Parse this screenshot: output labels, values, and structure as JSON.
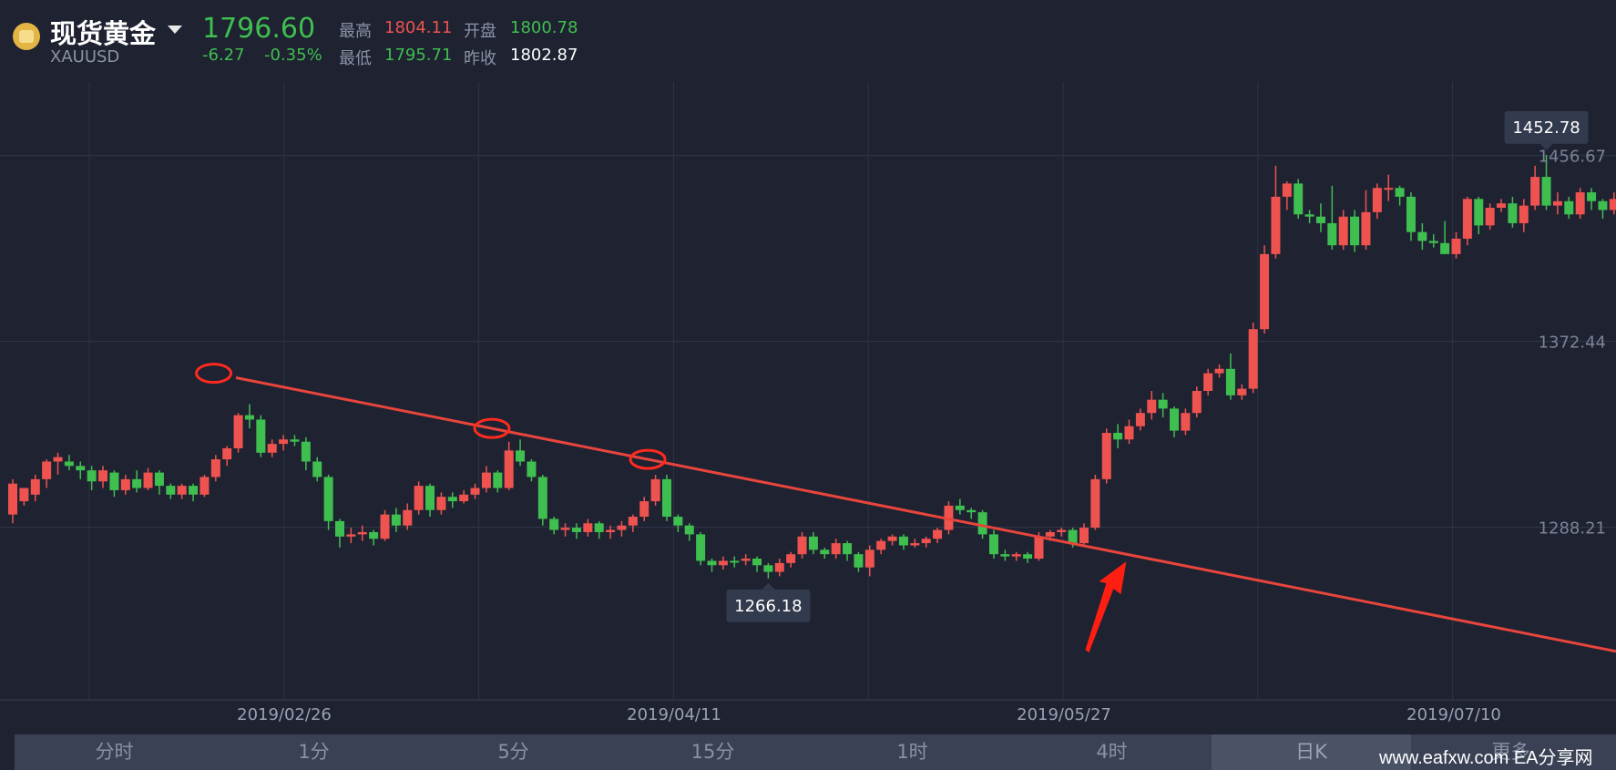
{
  "header": {
    "symbol": "现货黄金",
    "code": "XAUUSD",
    "price": "1796.60",
    "change": "-6.27",
    "change_pct": "-0.35%",
    "high_label": "最高",
    "high": "1804.11",
    "open_label": "开盘",
    "open": "1800.78",
    "low_label": "最低",
    "low": "1795.71",
    "prev_close_label": "昨收",
    "prev_close": "1802.87",
    "colors": {
      "up": "#ef5350",
      "down": "#3fbf50",
      "neutral": "#ffffff"
    }
  },
  "chart_data": {
    "type": "candlestick",
    "x_ticks": [
      "2019/02/26",
      "2019/04/11",
      "2019/05/27",
      "2019/07/10"
    ],
    "y_ticks": [
      1456.67,
      1372.44,
      1288.21
    ],
    "ylim": [
      1210,
      1490
    ],
    "grid": true,
    "callouts": {
      "high": "1452.78",
      "low": "1266.18"
    },
    "candles": [
      [
        1294,
        1308,
        1290,
        1310,
        "up"
      ],
      [
        1300,
        1306,
        1298,
        1306,
        "up"
      ],
      [
        1303,
        1310,
        1300,
        1312,
        "up"
      ],
      [
        1310,
        1318,
        1306,
        1319,
        "up"
      ],
      [
        1318,
        1320,
        1312,
        1322,
        "up"
      ],
      [
        1318,
        1316,
        1314,
        1321,
        "down"
      ],
      [
        1316,
        1314,
        1310,
        1318,
        "down"
      ],
      [
        1314,
        1309,
        1305,
        1316,
        "down"
      ],
      [
        1309,
        1314,
        1306,
        1316,
        "up"
      ],
      [
        1313,
        1305,
        1302,
        1314,
        "down"
      ],
      [
        1305,
        1310,
        1303,
        1312,
        "up"
      ],
      [
        1310,
        1306,
        1304,
        1314,
        "down"
      ],
      [
        1306,
        1313,
        1305,
        1315,
        "up"
      ],
      [
        1313,
        1307,
        1303,
        1314,
        "down"
      ],
      [
        1307,
        1303,
        1301,
        1308,
        "down"
      ],
      [
        1303,
        1307,
        1301,
        1308,
        "up"
      ],
      [
        1307,
        1303,
        1300,
        1308,
        "down"
      ],
      [
        1303,
        1311,
        1302,
        1312,
        "up"
      ],
      [
        1311,
        1319,
        1309,
        1321,
        "up"
      ],
      [
        1319,
        1324,
        1316,
        1325,
        "up"
      ],
      [
        1324,
        1339,
        1322,
        1340,
        "up"
      ],
      [
        1339,
        1337,
        1333,
        1344,
        "down"
      ],
      [
        1337,
        1322,
        1320,
        1339,
        "down"
      ],
      [
        1322,
        1326,
        1320,
        1328,
        "up"
      ],
      [
        1326,
        1328,
        1323,
        1330,
        "up"
      ],
      [
        1328,
        1327,
        1325,
        1330,
        "down"
      ],
      [
        1327,
        1318,
        1314,
        1329,
        "down"
      ],
      [
        1318,
        1311,
        1309,
        1320,
        "down"
      ],
      [
        1311,
        1291,
        1287,
        1312,
        "down"
      ],
      [
        1291,
        1284,
        1279,
        1292,
        "down"
      ],
      [
        1284,
        1285,
        1281,
        1288,
        "up"
      ],
      [
        1285,
        1286,
        1282,
        1289,
        "up"
      ],
      [
        1286,
        1283,
        1280,
        1287,
        "down"
      ],
      [
        1283,
        1294,
        1282,
        1296,
        "up"
      ],
      [
        1294,
        1289,
        1286,
        1297,
        "down"
      ],
      [
        1289,
        1296,
        1287,
        1299,
        "up"
      ],
      [
        1296,
        1307,
        1294,
        1309,
        "up"
      ],
      [
        1307,
        1296,
        1293,
        1308,
        "down"
      ],
      [
        1296,
        1302,
        1294,
        1304,
        "up"
      ],
      [
        1302,
        1300,
        1297,
        1304,
        "down"
      ],
      [
        1300,
        1303,
        1299,
        1305,
        "up"
      ],
      [
        1303,
        1306,
        1301,
        1308,
        "up"
      ],
      [
        1306,
        1313,
        1304,
        1316,
        "up"
      ],
      [
        1313,
        1306,
        1304,
        1314,
        "down"
      ],
      [
        1306,
        1323,
        1305,
        1327,
        "up"
      ],
      [
        1323,
        1318,
        1316,
        1328,
        "down"
      ],
      [
        1318,
        1311,
        1309,
        1319,
        "down"
      ],
      [
        1311,
        1292,
        1289,
        1312,
        "down"
      ],
      [
        1292,
        1287,
        1285,
        1293,
        "down"
      ],
      [
        1287,
        1288,
        1284,
        1290,
        "up"
      ],
      [
        1288,
        1286,
        1283,
        1290,
        "down"
      ],
      [
        1286,
        1290,
        1284,
        1292,
        "up"
      ],
      [
        1290,
        1286,
        1283,
        1291,
        "down"
      ],
      [
        1286,
        1287,
        1283,
        1289,
        "up"
      ],
      [
        1287,
        1289,
        1284,
        1291,
        "up"
      ],
      [
        1289,
        1293,
        1286,
        1294,
        "up"
      ],
      [
        1293,
        1300,
        1291,
        1302,
        "up"
      ],
      [
        1300,
        1310,
        1298,
        1312,
        "up"
      ],
      [
        1310,
        1293,
        1291,
        1312,
        "down"
      ],
      [
        1293,
        1289,
        1286,
        1294,
        "down"
      ],
      [
        1289,
        1285,
        1282,
        1290,
        "down"
      ],
      [
        1285,
        1273,
        1271,
        1286,
        "down"
      ],
      [
        1273,
        1271,
        1268,
        1274,
        "down"
      ],
      [
        1271,
        1273,
        1269,
        1275,
        "up"
      ],
      [
        1273,
        1273,
        1270,
        1275,
        "down"
      ],
      [
        1273,
        1274,
        1271,
        1276,
        "up"
      ],
      [
        1274,
        1271,
        1268,
        1275,
        "down"
      ],
      [
        1271,
        1268,
        1265,
        1272,
        "down"
      ],
      [
        1268,
        1272,
        1266,
        1274,
        "up"
      ],
      [
        1272,
        1276,
        1270,
        1277,
        "up"
      ],
      [
        1276,
        1284,
        1274,
        1286,
        "up"
      ],
      [
        1284,
        1278,
        1276,
        1286,
        "down"
      ],
      [
        1278,
        1276,
        1274,
        1279,
        "down"
      ],
      [
        1276,
        1281,
        1274,
        1283,
        "up"
      ],
      [
        1281,
        1276,
        1273,
        1282,
        "down"
      ],
      [
        1276,
        1270,
        1268,
        1277,
        "down"
      ],
      [
        1270,
        1278,
        1266,
        1280,
        "up"
      ],
      [
        1278,
        1282,
        1276,
        1283,
        "up"
      ],
      [
        1282,
        1284,
        1280,
        1285,
        "up"
      ],
      [
        1284,
        1280,
        1278,
        1285,
        "down"
      ],
      [
        1280,
        1281,
        1279,
        1283,
        "up"
      ],
      [
        1281,
        1283,
        1279,
        1284,
        "up"
      ],
      [
        1283,
        1287,
        1281,
        1288,
        "up"
      ],
      [
        1287,
        1298,
        1285,
        1300,
        "up"
      ],
      [
        1298,
        1296,
        1294,
        1301,
        "down"
      ],
      [
        1296,
        1295,
        1292,
        1297,
        "down"
      ],
      [
        1295,
        1285,
        1283,
        1296,
        "down"
      ],
      [
        1285,
        1276,
        1274,
        1287,
        "down"
      ],
      [
        1276,
        1275,
        1273,
        1278,
        "down"
      ],
      [
        1275,
        1276,
        1273,
        1277,
        "up"
      ],
      [
        1276,
        1274,
        1272,
        1277,
        "down"
      ],
      [
        1274,
        1284,
        1273,
        1286,
        "up"
      ],
      [
        1284,
        1286,
        1282,
        1287,
        "up"
      ],
      [
        1286,
        1287,
        1284,
        1288,
        "up"
      ],
      [
        1287,
        1281,
        1279,
        1288,
        "down"
      ],
      [
        1281,
        1288,
        1280,
        1290,
        "up"
      ],
      [
        1288,
        1310,
        1287,
        1312,
        "up"
      ],
      [
        1310,
        1331,
        1308,
        1333,
        "up"
      ],
      [
        1331,
        1328,
        1324,
        1335,
        "down"
      ],
      [
        1328,
        1334,
        1326,
        1337,
        "up"
      ],
      [
        1334,
        1340,
        1332,
        1342,
        "up"
      ],
      [
        1340,
        1346,
        1337,
        1350,
        "up"
      ],
      [
        1346,
        1342,
        1338,
        1349,
        "down"
      ],
      [
        1342,
        1332,
        1329,
        1343,
        "down"
      ],
      [
        1332,
        1340,
        1330,
        1342,
        "up"
      ],
      [
        1340,
        1350,
        1338,
        1352,
        "up"
      ],
      [
        1350,
        1358,
        1348,
        1360,
        "up"
      ],
      [
        1358,
        1360,
        1356,
        1362,
        "up"
      ],
      [
        1360,
        1348,
        1346,
        1367,
        "down"
      ],
      [
        1348,
        1351,
        1346,
        1353,
        "up"
      ],
      [
        1351,
        1378,
        1349,
        1381,
        "up"
      ],
      [
        1378,
        1412,
        1376,
        1416,
        "up"
      ],
      [
        1412,
        1438,
        1410,
        1452,
        "up"
      ],
      [
        1438,
        1444,
        1432,
        1445,
        "up"
      ],
      [
        1444,
        1430,
        1428,
        1446,
        "down"
      ],
      [
        1430,
        1429,
        1426,
        1432,
        "down"
      ],
      [
        1429,
        1426,
        1422,
        1435,
        "down"
      ],
      [
        1426,
        1416,
        1414,
        1443,
        "down"
      ],
      [
        1416,
        1429,
        1414,
        1432,
        "up"
      ],
      [
        1429,
        1416,
        1413,
        1432,
        "down"
      ],
      [
        1416,
        1431,
        1414,
        1441,
        "up"
      ],
      [
        1431,
        1442,
        1428,
        1444,
        "up"
      ],
      [
        1442,
        1442,
        1436,
        1448,
        "up"
      ],
      [
        1442,
        1438,
        1434,
        1443,
        "down"
      ],
      [
        1438,
        1422,
        1418,
        1440,
        "down"
      ],
      [
        1422,
        1418,
        1414,
        1426,
        "down"
      ],
      [
        1418,
        1417,
        1415,
        1421,
        "down"
      ],
      [
        1417,
        1412,
        1412,
        1427,
        "down"
      ],
      [
        1412,
        1419,
        1410,
        1422,
        "up"
      ],
      [
        1419,
        1437,
        1416,
        1438,
        "up"
      ],
      [
        1437,
        1425,
        1421,
        1438,
        "down"
      ],
      [
        1425,
        1433,
        1423,
        1435,
        "up"
      ],
      [
        1433,
        1435,
        1431,
        1437,
        "up"
      ],
      [
        1435,
        1426,
        1424,
        1438,
        "down"
      ],
      [
        1426,
        1434,
        1422,
        1437,
        "up"
      ],
      [
        1434,
        1447,
        1432,
        1452,
        "up"
      ],
      [
        1447,
        1434,
        1432,
        1457,
        "down"
      ],
      [
        1434,
        1436,
        1430,
        1440,
        "up"
      ],
      [
        1436,
        1430,
        1428,
        1438,
        "down"
      ],
      [
        1430,
        1440,
        1428,
        1442,
        "up"
      ],
      [
        1440,
        1436,
        1432,
        1442,
        "down"
      ],
      [
        1436,
        1432,
        1428,
        1437,
        "down"
      ],
      [
        1432,
        1437,
        1430,
        1440,
        "up"
      ]
    ],
    "annotations": {
      "trendline": [
        [
          0.146,
          1356
        ],
        [
          1.0,
          1232
        ]
      ],
      "circled_highs": [
        1358,
        1333,
        1319
      ],
      "arrow_target": 1276
    }
  },
  "tabs": [
    "分时",
    "1分",
    "5分",
    "15分",
    "1时",
    "4时",
    "日K",
    "更多"
  ],
  "active_tab": "日K",
  "watermark": "www.eafxw.com  EA分享网"
}
